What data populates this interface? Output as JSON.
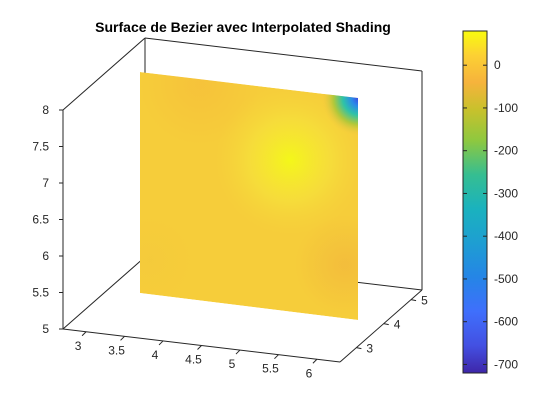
{
  "chart_data": {
    "type": "surface",
    "title": "Surface de Bezier avec Interpolated Shading",
    "xlabel": "",
    "ylabel": "",
    "zlabel": "",
    "x_ticks": [
      "3",
      "3.5",
      "4",
      "4.5",
      "5",
      "5.5",
      "6"
    ],
    "y_ticks": [
      "3",
      "4",
      "5"
    ],
    "z_ticks": [
      "5",
      "5.5",
      "6",
      "6.5",
      "7",
      "7.5",
      "8"
    ],
    "xlim": [
      2.7,
      6.3
    ],
    "ylim": [
      2.4,
      5.4
    ],
    "zlim": [
      5,
      8
    ],
    "surface": {
      "x_range": [
        3,
        6
      ],
      "y": 4,
      "z_range": [
        5.5,
        8
      ],
      "color_min": -720,
      "color_max": 80,
      "bright_spot": {
        "x": 5.0,
        "z": 7.3
      },
      "low_corner": {
        "x": 6.0,
        "z": 8.0,
        "value": -720
      }
    },
    "colorbar": {
      "ticks": [
        "0",
        "-100",
        "-200",
        "-300",
        "-400",
        "-500",
        "-600",
        "-700"
      ],
      "tick_values": [
        0,
        -100,
        -200,
        -300,
        -400,
        -500,
        -600,
        -700
      ],
      "min": -720,
      "max": 80,
      "colormap": "parula"
    },
    "grid": false
  }
}
